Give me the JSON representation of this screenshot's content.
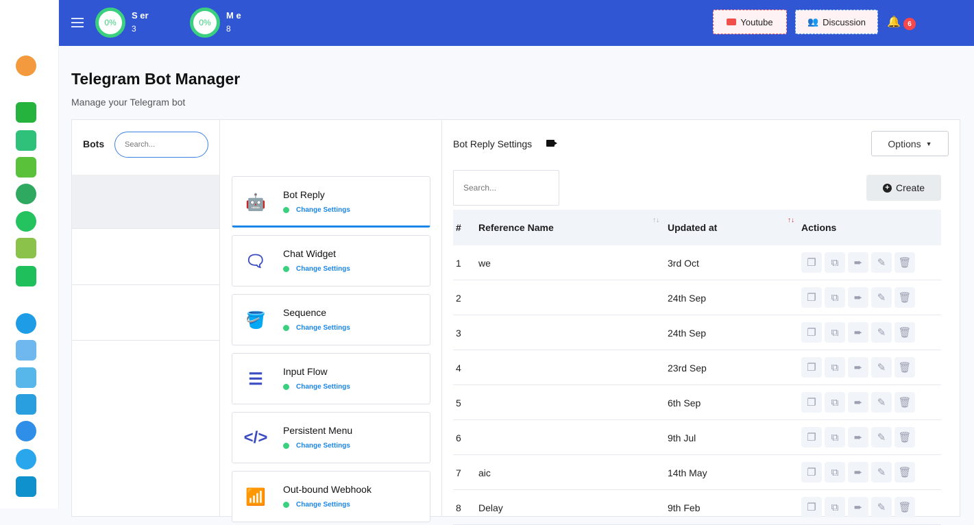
{
  "sidebar": {
    "items": [
      "dashboard-gauge-icon",
      "whatsapp-icon",
      "whatsapp-bot-icon",
      "whatsapp-contacts-icon",
      "whatsapp-broadcast-icon",
      "whatsapp-chat-icon",
      "integration-puzzle-icon",
      "whatsapp-shop-icon",
      "telegram-icon",
      "telegram-bot-icon",
      "telegram-subscribers-icon",
      "telegram-contacts-icon",
      "telegram-broadcast-icon",
      "telegram-chat-icon",
      "telegram-shop-icon"
    ]
  },
  "header": {
    "stats": [
      {
        "percent": "0%",
        "label": "S        er",
        "value": "3"
      },
      {
        "percent": "0%",
        "label": "M      e",
        "value": "8"
      }
    ],
    "youtube_label": "Youtube",
    "discussion_label": "Discussion",
    "notification_count": "6",
    "colors": {
      "bar": "#3056d3",
      "progress": "#3bd07f"
    }
  },
  "page": {
    "title": "Telegram Bot Manager",
    "subtitle": "Manage your Telegram bot"
  },
  "bots": {
    "label": "Bots",
    "search_placeholder": "Search..."
  },
  "features": [
    {
      "title": "Bot Reply",
      "link": "Change Settings",
      "icon": "robot-icon"
    },
    {
      "title": "Chat Widget",
      "link": "Change Settings",
      "icon": "chat-bubble-icon"
    },
    {
      "title": "Sequence",
      "link": "Change Settings",
      "icon": "paint-bucket-icon"
    },
    {
      "title": "Input Flow",
      "link": "Change Settings",
      "icon": "lines-icon"
    },
    {
      "title": "Persistent Menu",
      "link": "Change Settings",
      "icon": "code-icon"
    },
    {
      "title": "Out-bound Webhook",
      "link": "Change Settings",
      "icon": "wifi-icon"
    }
  ],
  "settings": {
    "title": "Bot Reply Settings",
    "options_label": "Options",
    "search_placeholder": "Search...",
    "create_label": "Create",
    "columns": [
      "#",
      "Reference Name",
      "Updated at",
      "Actions"
    ],
    "rows": [
      {
        "n": "1",
        "name": "we",
        "updated": "3rd Oct"
      },
      {
        "n": "2",
        "name": "",
        "updated": "24th Sep"
      },
      {
        "n": "3",
        "name": "",
        "updated": "24th Sep"
      },
      {
        "n": "4",
        "name": "",
        "updated": "23rd Sep"
      },
      {
        "n": "5",
        "name": "",
        "updated": "6th Sep"
      },
      {
        "n": "6",
        "name": "",
        "updated": "9th Jul"
      },
      {
        "n": "7",
        "name": "aic",
        "updated": "14th May"
      },
      {
        "n": "8",
        "name": "Delay",
        "updated": "9th Feb"
      }
    ],
    "actions": [
      "copy-icon",
      "clone-icon",
      "export-icon",
      "edit-icon",
      "delete-icon"
    ]
  }
}
